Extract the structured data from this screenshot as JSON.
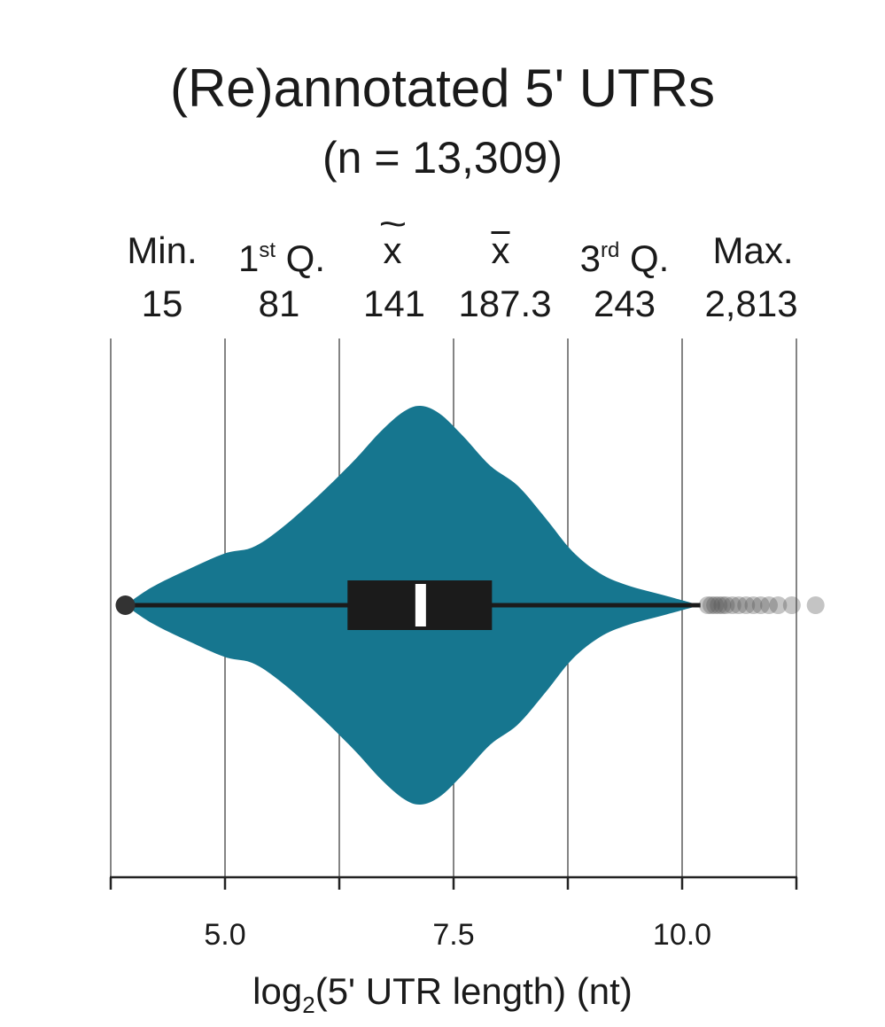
{
  "chart_data": {
    "type": "violin",
    "title": "(Re)annotated 5' UTRs",
    "subtitle": "(n = 13,309)",
    "xlabel_parts": {
      "pre": "log",
      "sub": "2",
      "post": "(5' UTR length) (nt)"
    },
    "xlim": [
      3.6,
      11.25
    ],
    "xticks": [
      3.75,
      5.0,
      6.25,
      7.5,
      8.75,
      10.0,
      11.25
    ],
    "xtick_labels": [
      {
        "value": 5.0,
        "label": "5.0"
      },
      {
        "value": 7.5,
        "label": "7.5"
      },
      {
        "value": 10.0,
        "label": "10.0"
      }
    ],
    "grid": "vertical",
    "stats": [
      {
        "key": "min",
        "label": "Min.",
        "value": "15"
      },
      {
        "key": "q1",
        "label_main": "1",
        "label_sup": "st",
        "label_post": " Q.",
        "value": "81"
      },
      {
        "key": "median",
        "label": "x",
        "value": "141"
      },
      {
        "key": "mean",
        "label": "x",
        "value": "187.3"
      },
      {
        "key": "q3",
        "label_main": "3",
        "label_sup": "rd",
        "label_post": " Q.",
        "value": "243"
      },
      {
        "key": "max",
        "label": "Max.",
        "value": "2,813"
      }
    ],
    "box": {
      "whisker_low": 3.91,
      "q1": 6.34,
      "median": 7.14,
      "q3": 7.92,
      "whisker_high": 10.2
    },
    "outliers": [
      10.28,
      10.32,
      10.36,
      10.4,
      10.44,
      10.48,
      10.55,
      10.62,
      10.7,
      10.78,
      10.86,
      10.95,
      11.05,
      11.2,
      11.46
    ],
    "density": [
      [
        3.91,
        0.0
      ],
      [
        4.2,
        0.09
      ],
      [
        4.6,
        0.18
      ],
      [
        5.0,
        0.26
      ],
      [
        5.3,
        0.29
      ],
      [
        5.6,
        0.38
      ],
      [
        6.0,
        0.54
      ],
      [
        6.4,
        0.72
      ],
      [
        6.7,
        0.87
      ],
      [
        6.95,
        0.97
      ],
      [
        7.14,
        1.0
      ],
      [
        7.35,
        0.96
      ],
      [
        7.6,
        0.85
      ],
      [
        7.9,
        0.7
      ],
      [
        8.2,
        0.6
      ],
      [
        8.5,
        0.44
      ],
      [
        8.8,
        0.27
      ],
      [
        9.1,
        0.16
      ],
      [
        9.4,
        0.1
      ],
      [
        9.8,
        0.05
      ],
      [
        10.2,
        0.0
      ]
    ],
    "colors": {
      "violin": "#16768f",
      "box": "#1b1b1b",
      "median": "#ffffff",
      "grid": "#333333",
      "outlier": "#555555"
    }
  }
}
